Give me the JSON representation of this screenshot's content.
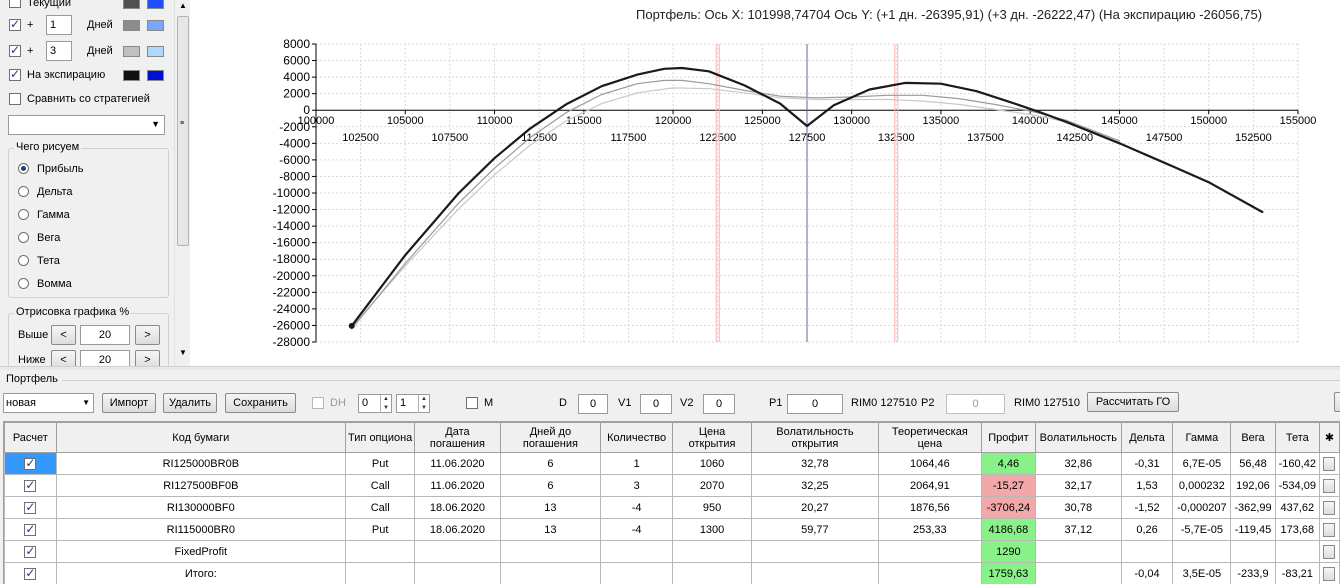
{
  "left_panel": {
    "current_label": "Текущий",
    "plus_sign": "+",
    "row1_days": "1",
    "row2_days": "3",
    "days_label": "Дней",
    "expiration_label": "На экспирацию",
    "compare_label": "Сравнить со стратегией",
    "draw_group_title": "Чего рисуем",
    "radio_options": [
      "Прибыль",
      "Дельта",
      "Гамма",
      "Вега",
      "Тета",
      "Вомма"
    ],
    "selected_radio": "Прибыль",
    "render_group_title": "Отрисовка графика %",
    "above_label": "Выше",
    "above_value": "20",
    "below_label": "Ниже",
    "below_value": "20",
    "btn_left": "<",
    "btn_right": ">",
    "colors": {
      "current_a": "#505050",
      "current_b": "#1f4fff",
      "row1_a": "#8c8c8c",
      "row1_b": "#7aa6ff",
      "row2_a": "#c0c0c0",
      "row2_b": "#b0d8ff",
      "exp_a": "#101010",
      "exp_b": "#0010d0"
    }
  },
  "chart_title": "Портфель: Ось X: 101998,74704 Ось Y:  (+1 дн. -26395,91)  (+3 дн. -26222,47)  (На экспирацию -26056,75)",
  "chart_data": {
    "type": "line",
    "x_upper_ticks": [
      100000,
      105000,
      110000,
      115000,
      120000,
      125000,
      130000,
      135000,
      140000,
      145000,
      150000,
      155000
    ],
    "x_lower_ticks": [
      102500,
      107500,
      112500,
      117500,
      122500,
      127500,
      132500,
      137500,
      142500,
      147500,
      152500
    ],
    "y_ticks": [
      8000,
      6000,
      4000,
      2000,
      0,
      -2000,
      -4000,
      -6000,
      -8000,
      -10000,
      -12000,
      -14000,
      -16000,
      -18000,
      -20000,
      -22000,
      -24000,
      -26000,
      -28000
    ],
    "xlim": [
      100000,
      155000
    ],
    "ylim": [
      -28000,
      8000
    ],
    "cursor_x": 127500,
    "strike_lines": [
      122500,
      132500
    ],
    "series": [
      {
        "color": "#1a1a1a",
        "points": [
          [
            102000,
            -26057
          ],
          [
            105000,
            -17500
          ],
          [
            108000,
            -10000
          ],
          [
            110000,
            -5800
          ],
          [
            112000,
            -2200
          ],
          [
            114000,
            700
          ],
          [
            116000,
            2900
          ],
          [
            118000,
            4300
          ],
          [
            119500,
            5000
          ],
          [
            120500,
            5100
          ],
          [
            122000,
            4700
          ],
          [
            124000,
            3000
          ],
          [
            126000,
            800
          ],
          [
            127500,
            -1900
          ],
          [
            129000,
            600
          ],
          [
            131000,
            2500
          ],
          [
            133000,
            3300
          ],
          [
            135000,
            3200
          ],
          [
            137000,
            2300
          ],
          [
            139000,
            900
          ],
          [
            140500,
            -200
          ],
          [
            142000,
            -1400
          ],
          [
            145000,
            -4000
          ],
          [
            148000,
            -6800
          ],
          [
            150000,
            -8700
          ],
          [
            153000,
            -12300
          ]
        ]
      },
      {
        "color": "#9a9a9a",
        "points": [
          [
            102000,
            -26396
          ],
          [
            105000,
            -18500
          ],
          [
            108000,
            -11200
          ],
          [
            110000,
            -7000
          ],
          [
            112000,
            -3300
          ],
          [
            114000,
            -300
          ],
          [
            116000,
            1900
          ],
          [
            118000,
            3200
          ],
          [
            119500,
            3600
          ],
          [
            120500,
            3600
          ],
          [
            122000,
            3200
          ],
          [
            124000,
            2400
          ],
          [
            126000,
            1700
          ],
          [
            128000,
            1500
          ],
          [
            130000,
            1600
          ],
          [
            132000,
            1800
          ],
          [
            134000,
            1800
          ],
          [
            136000,
            1400
          ],
          [
            138000,
            700
          ],
          [
            140000,
            -100
          ],
          [
            142000,
            -1200
          ],
          [
            145000,
            -3700
          ]
        ]
      },
      {
        "color": "#c8c8c8",
        "points": [
          [
            102000,
            -26222
          ],
          [
            105000,
            -18800
          ],
          [
            108000,
            -11900
          ],
          [
            110000,
            -7800
          ],
          [
            112000,
            -4200
          ],
          [
            114000,
            -1300
          ],
          [
            116000,
            800
          ],
          [
            118000,
            2100
          ],
          [
            120000,
            2700
          ],
          [
            122000,
            2600
          ],
          [
            124000,
            2100
          ],
          [
            126000,
            1500
          ],
          [
            128000,
            1300
          ],
          [
            130000,
            1300
          ],
          [
            132000,
            1300
          ],
          [
            134000,
            1100
          ],
          [
            136000,
            700
          ],
          [
            138000,
            100
          ],
          [
            140000,
            -500
          ],
          [
            142000,
            -1400
          ],
          [
            145000,
            -3700
          ]
        ]
      }
    ]
  },
  "portfolio": {
    "label": "Портфель",
    "portfolio_select": "новая",
    "import_btn": "Импорт",
    "delete_btn": "Удалить",
    "save_btn": "Сохранить",
    "dh_label": "DH",
    "spin1": "0",
    "spin2": "1",
    "m_label": "M",
    "d_label": "D",
    "d_value": "0",
    "v1_label": "V1",
    "v1_value": "0",
    "v2_label": "V2",
    "v2_value": "0",
    "p1_label": "P1",
    "p1_value": "0",
    "p1_ticker": "RIM0 127510",
    "p2_label": "P2",
    "p2_value": "0",
    "p2_ticker": "RIM0 127510",
    "calc_btn": "Рассчитать ГО"
  },
  "table": {
    "headers": [
      "Расчет",
      "Код бумаги",
      "Тип опциона",
      "Дата погашения",
      "Дней до погашения",
      "Количество",
      "Цена открытия",
      "Волатильность открытия",
      "Теоретическая цена",
      "Профит",
      "Волатильность",
      "Дельта",
      "Гамма",
      "Вега",
      "Тета"
    ],
    "rows": [
      [
        "RI125000BR0B",
        "Put",
        "11.06.2020",
        "6",
        "1",
        "1060",
        "32,78",
        "1064,46",
        "4,46",
        "32,86",
        "-0,31",
        "6,7E-05",
        "56,48",
        "-160,42"
      ],
      [
        "RI127500BF0B",
        "Call",
        "11.06.2020",
        "6",
        "3",
        "2070",
        "32,25",
        "2064,91",
        "-15,27",
        "32,17",
        "1,53",
        "0,000232",
        "192,06",
        "-534,09"
      ],
      [
        "RI130000BF0",
        "Call",
        "18.06.2020",
        "13",
        "-4",
        "950",
        "20,27",
        "1876,56",
        "-3706,24",
        "30,78",
        "-1,52",
        "-0,000207",
        "-362,99",
        "437,62"
      ],
      [
        "RI115000BR0",
        "Put",
        "18.06.2020",
        "13",
        "-4",
        "1300",
        "59,77",
        "253,33",
        "4186,68",
        "37,12",
        "0,26",
        "-5,7E-05",
        "-119,45",
        "173,68"
      ],
      [
        "FixedProfit",
        "",
        "",
        "",
        "",
        "",
        "",
        "",
        "1290",
        "",
        "",
        "",
        "",
        ""
      ],
      [
        "Итого:",
        "",
        "",
        "",
        "",
        "",
        "",
        "",
        "1759,63",
        "",
        "-0,04",
        "3,5E-05",
        "-233,9",
        "-83,21"
      ]
    ]
  }
}
